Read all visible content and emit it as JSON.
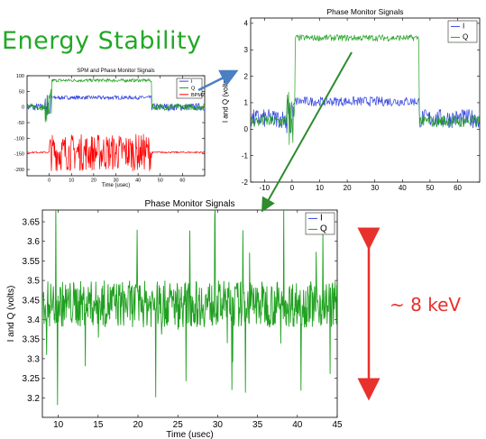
{
  "slide": {
    "title": "Energy Stability",
    "annotation": "~ 8 keV",
    "colors": {
      "title": "#22a826",
      "annotation": "#e8302c",
      "arrow_blue": "#4a7fc1",
      "arrow_green": "#2e8b2e",
      "arrow_red": "#e8302c"
    }
  },
  "chart_data": [
    {
      "id": "small",
      "type": "line",
      "title": "SPM and Phase Monitor Signals",
      "xlabel": "Time (usec)",
      "ylabel": "",
      "xlim": [
        -10,
        70
      ],
      "ylim": [
        -220,
        100
      ],
      "xticks": [
        0,
        10,
        20,
        30,
        40,
        50,
        60
      ],
      "yticks": [
        100,
        50,
        0,
        -50,
        -100,
        -150,
        -200
      ],
      "legend_position": "top-right",
      "series": [
        {
          "name": "I",
          "color": "#3040e0",
          "baseline": 0,
          "level": 30,
          "noise": 6
        },
        {
          "name": "Q",
          "color": "#20a020",
          "baseline": 0,
          "level": 85,
          "noise": 5
        },
        {
          "name": "BPM2",
          "color": "#ff0000",
          "baseline": -145,
          "level": -145,
          "burst_amplitude": 60
        }
      ],
      "pulse": [
        0,
        46
      ]
    },
    {
      "id": "upper",
      "type": "line",
      "title": "Phase Monitor Signals",
      "xlabel": "",
      "ylabel": "I and Q (volts)",
      "xlim": [
        -15,
        68
      ],
      "ylim": [
        -2,
        4.2
      ],
      "xticks": [
        -10,
        0,
        10,
        20,
        30,
        40,
        50,
        60
      ],
      "yticks": [
        4,
        3,
        2,
        1,
        0,
        -1,
        -2
      ],
      "legend_position": "top-right",
      "series": [
        {
          "name": "I",
          "color": "#3040e0",
          "baseline": 0.4,
          "level": 1.05,
          "noise": 0.18
        },
        {
          "name": "Q",
          "color": "#20a020",
          "baseline": 0.3,
          "level": 3.45,
          "noise": 0.12
        }
      ],
      "pulse": [
        0,
        46
      ]
    },
    {
      "id": "zoom",
      "type": "line",
      "title": "Phase Monitor Signals",
      "xlabel": "Time (usec)",
      "ylabel": "I and Q (volts)",
      "xlim": [
        8,
        45
      ],
      "ylim": [
        3.15,
        3.68
      ],
      "xticks": [
        10,
        15,
        20,
        25,
        30,
        35,
        40,
        45
      ],
      "yticks": [
        3.65,
        3.6,
        3.55,
        3.5,
        3.45,
        3.4,
        3.35,
        3.3,
        3.25,
        3.2
      ],
      "legend_position": "top-right",
      "series": [
        {
          "name": "I",
          "color": "#3040e0",
          "visible_in_range": false
        },
        {
          "name": "Q",
          "color": "#20a020",
          "center": 3.44,
          "spread": 0.06
        }
      ]
    }
  ]
}
